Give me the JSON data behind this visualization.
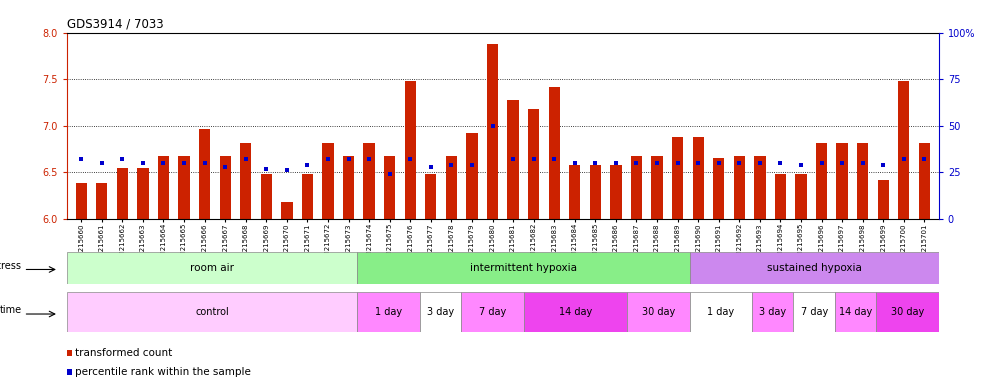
{
  "title": "GDS3914 / 7033",
  "samples": [
    "GSM215660",
    "GSM215661",
    "GSM215662",
    "GSM215663",
    "GSM215664",
    "GSM215665",
    "GSM215666",
    "GSM215667",
    "GSM215668",
    "GSM215669",
    "GSM215670",
    "GSM215671",
    "GSM215672",
    "GSM215673",
    "GSM215674",
    "GSM215675",
    "GSM215676",
    "GSM215677",
    "GSM215678",
    "GSM215679",
    "GSM215680",
    "GSM215681",
    "GSM215682",
    "GSM215683",
    "GSM215684",
    "GSM215685",
    "GSM215686",
    "GSM215687",
    "GSM215688",
    "GSM215689",
    "GSM215690",
    "GSM215691",
    "GSM215692",
    "GSM215693",
    "GSM215694",
    "GSM215695",
    "GSM215696",
    "GSM215697",
    "GSM215698",
    "GSM215699",
    "GSM215700",
    "GSM215701"
  ],
  "transformed_count": [
    6.38,
    6.38,
    6.55,
    6.55,
    6.68,
    6.68,
    6.96,
    6.68,
    6.82,
    6.48,
    6.18,
    6.48,
    6.82,
    6.68,
    6.82,
    6.68,
    7.48,
    6.48,
    6.68,
    6.92,
    7.88,
    7.28,
    7.18,
    7.42,
    6.58,
    6.58,
    6.58,
    6.68,
    6.68,
    6.88,
    6.88,
    6.65,
    6.68,
    6.68,
    6.48,
    6.48,
    6.82,
    6.82,
    6.82,
    6.42,
    7.48,
    6.82
  ],
  "percentile_rank": [
    32,
    30,
    32,
    30,
    30,
    30,
    30,
    28,
    32,
    27,
    26,
    29,
    32,
    32,
    32,
    24,
    32,
    28,
    29,
    29,
    50,
    32,
    32,
    32,
    30,
    30,
    30,
    30,
    30,
    30,
    30,
    30,
    30,
    30,
    30,
    29,
    30,
    30,
    30,
    29,
    32,
    32
  ],
  "ylim": [
    6.0,
    8.0
  ],
  "yticks": [
    6.0,
    6.5,
    7.0,
    7.5,
    8.0
  ],
  "right_yticks": [
    0,
    25,
    50,
    75,
    100
  ],
  "bar_color": "#cc2200",
  "percentile_color": "#0000cc",
  "stress_groups": [
    {
      "label": "room air",
      "start": 0,
      "end": 14,
      "color": "#ccffcc"
    },
    {
      "label": "intermittent hypoxia",
      "start": 14,
      "end": 30,
      "color": "#88ee88"
    },
    {
      "label": "sustained hypoxia",
      "start": 30,
      "end": 42,
      "color": "#cc88ee"
    }
  ],
  "time_groups": [
    {
      "label": "control",
      "start": 0,
      "end": 14,
      "color": "#ffccff"
    },
    {
      "label": "1 day",
      "start": 14,
      "end": 17,
      "color": "#ff88ff"
    },
    {
      "label": "3 day",
      "start": 17,
      "end": 19,
      "color": "#ffffff"
    },
    {
      "label": "7 day",
      "start": 19,
      "end": 22,
      "color": "#ff88ff"
    },
    {
      "label": "14 day",
      "start": 22,
      "end": 27,
      "color": "#ee44ee"
    },
    {
      "label": "30 day",
      "start": 27,
      "end": 30,
      "color": "#ff88ff"
    },
    {
      "label": "1 day",
      "start": 30,
      "end": 33,
      "color": "#ffffff"
    },
    {
      "label": "3 day",
      "start": 33,
      "end": 35,
      "color": "#ff88ff"
    },
    {
      "label": "7 day",
      "start": 35,
      "end": 37,
      "color": "#ffffff"
    },
    {
      "label": "14 day",
      "start": 37,
      "end": 39,
      "color": "#ff88ff"
    },
    {
      "label": "30 day",
      "start": 39,
      "end": 42,
      "color": "#ee44ee"
    }
  ],
  "legend_labels": [
    "transformed count",
    "percentile rank within the sample"
  ],
  "legend_colors": [
    "#cc2200",
    "#0000cc"
  ]
}
